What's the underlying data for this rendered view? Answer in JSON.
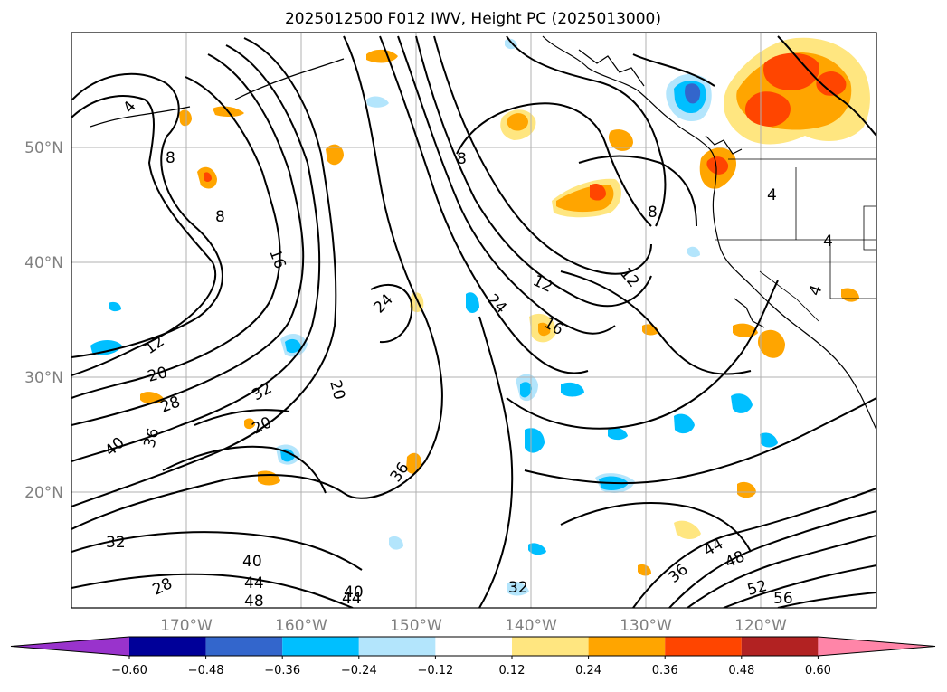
{
  "title": "2025012500 F012 IWV, Height PC (2025013000)",
  "lat_labels": [
    "50°N",
    "40°N",
    "30°N",
    "20°N"
  ],
  "lon_labels": [
    "170°W",
    "160°W",
    "150°W",
    "140°W",
    "130°W",
    "120°W"
  ],
  "colorbar": {
    "ticks": [
      "−0.60",
      "−0.48",
      "−0.36",
      "−0.24",
      "−0.12",
      "0.12",
      "0.24",
      "0.36",
      "0.48",
      "0.60"
    ],
    "colors": [
      "#9933cc",
      "#000099",
      "#3366cc",
      "#00bfff",
      "#b3e5fc",
      "#ffffff",
      "#ffe680",
      "#ffa500",
      "#ff4500",
      "#b22222",
      "#ff85a8"
    ]
  },
  "contour_labels": [
    "4",
    "8",
    "8",
    "8",
    "8",
    "12",
    "12",
    "12",
    "16",
    "16",
    "20",
    "20",
    "20",
    "24",
    "24",
    "28",
    "28",
    "32",
    "32",
    "32",
    "36",
    "36",
    "36",
    "40",
    "40",
    "40",
    "44",
    "44",
    "44",
    "48",
    "48",
    "52",
    "56",
    "4",
    "4",
    "4"
  ]
}
